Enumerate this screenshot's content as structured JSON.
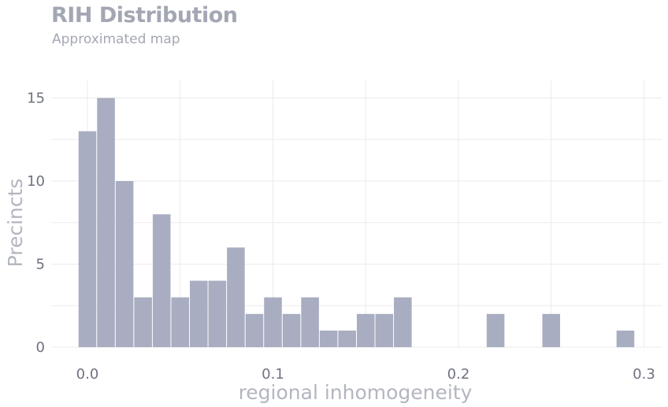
{
  "chart_data": {
    "type": "bar",
    "title": "RIH Distribution",
    "subtitle": "Approximated map",
    "xlabel": "regional inhomogeneity",
    "ylabel": "Precincts",
    "bin_width": 0.01,
    "x": [
      0.0,
      0.01,
      0.02,
      0.03,
      0.04,
      0.05,
      0.06,
      0.07,
      0.08,
      0.09,
      0.1,
      0.11,
      0.12,
      0.13,
      0.14,
      0.15,
      0.16,
      0.17,
      0.22,
      0.25,
      0.29
    ],
    "values": [
      13,
      15,
      10,
      3,
      8,
      3,
      4,
      4,
      6,
      2,
      3,
      2,
      3,
      1,
      1,
      2,
      2,
      3,
      2,
      2,
      1
    ],
    "xlim": [
      -0.02,
      0.315
    ],
    "ylim": [
      0,
      15
    ],
    "xticks": [
      "0.0",
      "0.1",
      "0.2",
      "0.3"
    ],
    "yticks": [
      "0",
      "5",
      "10",
      "15"
    ],
    "grid": true,
    "bar_color": "#a9adc1",
    "grid_color": "#ebebeb"
  }
}
